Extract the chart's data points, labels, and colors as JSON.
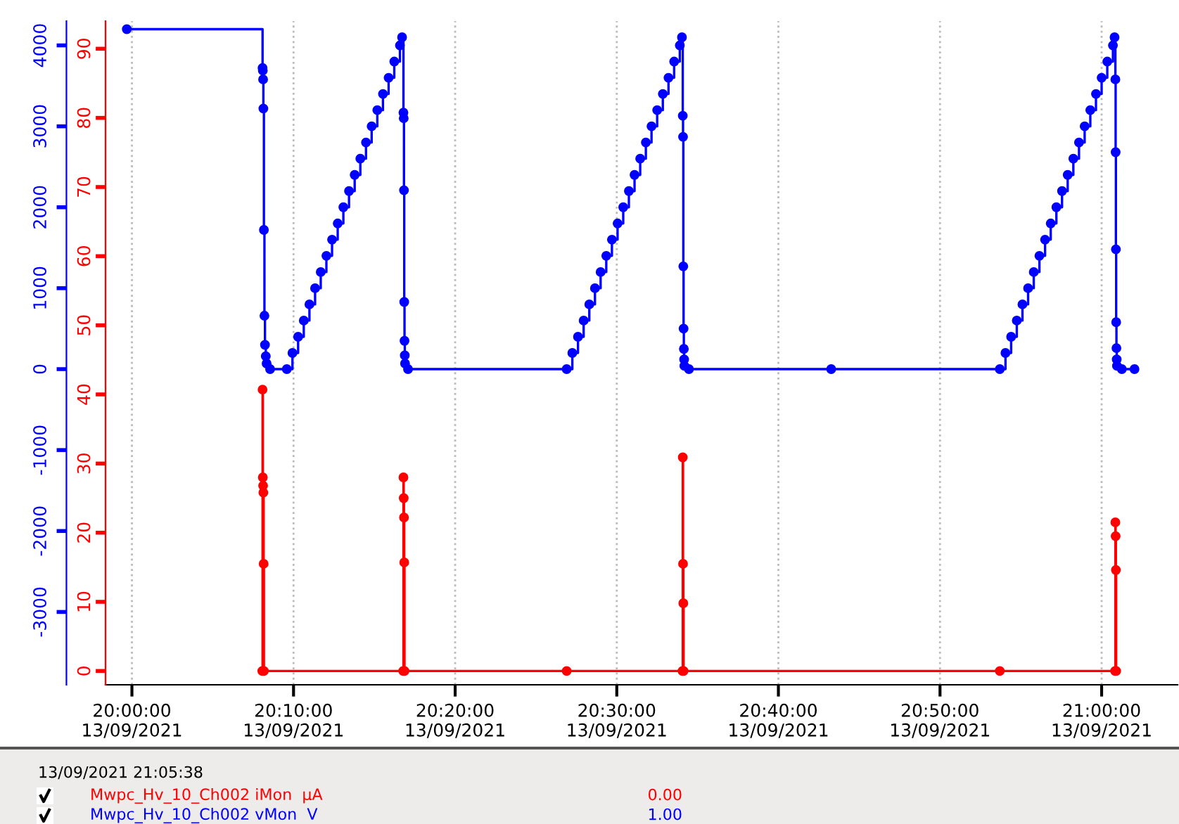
{
  "chart_data": {
    "type": "step",
    "series": [
      {
        "name": "Mwpc_Hv_10_Ch002 vMon  V",
        "color": "#0000ff",
        "axis": "y",
        "x": [
          "2021-09-13T19:59:41",
          "2021-09-13T20:08:05",
          "2021-09-13T20:08:06",
          "2021-09-13T20:08:07",
          "2021-09-13T20:08:08",
          "2021-09-13T20:08:10",
          "2021-09-13T20:08:12",
          "2021-09-13T20:08:14",
          "2021-09-13T20:08:17",
          "2021-09-13T20:08:20",
          "2021-09-13T20:08:33",
          "2021-09-13T20:09:35",
          "2021-09-13T20:09:56",
          "2021-09-13T20:10:17",
          "2021-09-13T20:10:38",
          "2021-09-13T20:10:59",
          "2021-09-13T20:11:20",
          "2021-09-13T20:11:41",
          "2021-09-13T20:12:02",
          "2021-09-13T20:12:23",
          "2021-09-13T20:12:44",
          "2021-09-13T20:13:05",
          "2021-09-13T20:13:26",
          "2021-09-13T20:13:47",
          "2021-09-13T20:14:08",
          "2021-09-13T20:14:29",
          "2021-09-13T20:14:50",
          "2021-09-13T20:15:11",
          "2021-09-13T20:15:32",
          "2021-09-13T20:15:53",
          "2021-09-13T20:16:14",
          "2021-09-13T20:16:35",
          "2021-09-13T20:16:43",
          "2021-09-13T20:16:48",
          "2021-09-13T20:16:49",
          "2021-09-13T20:16:50",
          "2021-09-13T20:16:51",
          "2021-09-13T20:16:52",
          "2021-09-13T20:16:53",
          "2021-09-13T20:16:54",
          "2021-09-13T20:17:05",
          "2021-09-13T20:26:54",
          "2021-09-13T20:27:15",
          "2021-09-13T20:27:36",
          "2021-09-13T20:27:57",
          "2021-09-13T20:28:18",
          "2021-09-13T20:28:39",
          "2021-09-13T20:29:00",
          "2021-09-13T20:29:21",
          "2021-09-13T20:29:42",
          "2021-09-13T20:30:03",
          "2021-09-13T20:30:24",
          "2021-09-13T20:30:45",
          "2021-09-13T20:31:06",
          "2021-09-13T20:31:27",
          "2021-09-13T20:31:48",
          "2021-09-13T20:32:09",
          "2021-09-13T20:32:30",
          "2021-09-13T20:32:51",
          "2021-09-13T20:33:12",
          "2021-09-13T20:33:33",
          "2021-09-13T20:33:54",
          "2021-09-13T20:34:02",
          "2021-09-13T20:34:05",
          "2021-09-13T20:34:06",
          "2021-09-13T20:34:07",
          "2021-09-13T20:34:08",
          "2021-09-13T20:34:09",
          "2021-09-13T20:34:10",
          "2021-09-13T20:34:11",
          "2021-09-13T20:34:28",
          "2021-09-13T20:43:16",
          "2021-09-13T20:53:42",
          "2021-09-13T20:54:03",
          "2021-09-13T20:54:24",
          "2021-09-13T20:54:45",
          "2021-09-13T20:55:06",
          "2021-09-13T20:55:27",
          "2021-09-13T20:55:48",
          "2021-09-13T20:56:09",
          "2021-09-13T20:56:30",
          "2021-09-13T20:56:51",
          "2021-09-13T20:57:12",
          "2021-09-13T20:57:33",
          "2021-09-13T20:57:54",
          "2021-09-13T20:58:15",
          "2021-09-13T20:58:36",
          "2021-09-13T20:58:57",
          "2021-09-13T20:59:18",
          "2021-09-13T20:59:39",
          "2021-09-13T21:00:00",
          "2021-09-13T21:00:21",
          "2021-09-13T21:00:42",
          "2021-09-13T21:00:48",
          "2021-09-13T21:00:51",
          "2021-09-13T21:00:52",
          "2021-09-13T21:00:53",
          "2021-09-13T21:00:54",
          "2021-09-13T21:00:55",
          "2021-09-13T21:00:56",
          "2021-09-13T21:00:57",
          "2021-09-13T21:01:15",
          "2021-09-13T21:02:02"
        ],
        "values": [
          4200,
          3720,
          3690,
          3580,
          3220,
          1720,
          660,
          300,
          160,
          70,
          0,
          0,
          200,
          400,
          600,
          800,
          1000,
          1200,
          1400,
          1600,
          1800,
          2000,
          2200,
          2400,
          2600,
          2800,
          3000,
          3200,
          3400,
          3600,
          3800,
          4000,
          4100,
          3170,
          3100,
          2210,
          830,
          350,
          170,
          70,
          0,
          0,
          200,
          400,
          600,
          800,
          1000,
          1200,
          1400,
          1600,
          1800,
          2000,
          2200,
          2400,
          2600,
          2800,
          3000,
          3200,
          3400,
          3600,
          3800,
          4000,
          4100,
          3130,
          2870,
          1270,
          500,
          250,
          120,
          40,
          0,
          0,
          0,
          200,
          400,
          600,
          800,
          1000,
          1200,
          1400,
          1600,
          1800,
          2000,
          2200,
          2400,
          2600,
          2800,
          3000,
          3200,
          3400,
          3600,
          3800,
          4000,
          4100,
          3580,
          2680,
          1480,
          580,
          260,
          120,
          40,
          0,
          0
        ]
      },
      {
        "name": "Mwpc_Hv_10_Ch002 iMon  µA",
        "color": "#ff0000",
        "axis": "y2",
        "x": [
          "2021-09-13T20:08:04",
          "2021-09-13T20:08:05",
          "2021-09-13T20:08:06",
          "2021-09-13T20:08:07",
          "2021-09-13T20:08:08",
          "2021-09-13T20:08:09",
          "2021-09-13T20:08:10",
          "2021-09-13T20:16:47",
          "2021-09-13T20:16:48",
          "2021-09-13T20:16:49",
          "2021-09-13T20:16:50",
          "2021-09-13T20:16:51",
          "2021-09-13T20:16:52",
          "2021-09-13T20:26:54",
          "2021-09-13T20:34:04",
          "2021-09-13T20:34:05",
          "2021-09-13T20:34:06",
          "2021-09-13T20:34:07",
          "2021-09-13T20:34:08",
          "2021-09-13T20:53:42",
          "2021-09-13T21:00:50",
          "2021-09-13T21:00:51",
          "2021-09-13T21:00:52",
          "2021-09-13T21:00:53",
          "2021-09-13T21:00:54"
        ],
        "values": [
          0,
          40.7,
          28.0,
          26.8,
          25.8,
          15.5,
          0,
          0,
          28.0,
          25.0,
          22.2,
          15.7,
          0,
          0,
          0,
          30.9,
          15.5,
          9.8,
          0,
          0,
          0,
          21.5,
          19.5,
          14.6,
          0
        ]
      }
    ],
    "marker": "circle",
    "line_style": "solid",
    "xlim": [
      "2021-09-13T19:58:22",
      "2021-09-13T21:04:42"
    ],
    "xticks": [
      {
        "value": "2021-09-13T20:00",
        "label": "20:00:00\n13/09/2021"
      },
      {
        "value": "2021-09-13T20:10",
        "label": "20:10:00\n13/09/2021"
      },
      {
        "value": "2021-09-13T20:20",
        "label": "20:20:00\n13/09/2021"
      },
      {
        "value": "2021-09-13T20:30",
        "label": "20:30:00\n13/09/2021"
      },
      {
        "value": "2021-09-13T20:40",
        "label": "20:40:00\n13/09/2021"
      },
      {
        "value": "2021-09-13T20:50",
        "label": "20:50:00\n13/09/2021"
      },
      {
        "value": "2021-09-13T21:00",
        "label": "21:00:00\n13/09/2021"
      }
    ],
    "ylim": [
      -3900,
      4300
    ],
    "yticks": [
      -3000,
      -2000,
      -1000,
      0,
      1000,
      2000,
      3000,
      4000
    ],
    "y2lim": [
      -2,
      94
    ],
    "y2ticks": [
      0,
      10,
      20,
      30,
      40,
      50,
      60,
      70,
      80,
      90
    ],
    "grid": "x",
    "legend": "bottom",
    "annotations": [
      "13/09/2021 21:05:38",
      "0.00",
      "1.00"
    ]
  }
}
